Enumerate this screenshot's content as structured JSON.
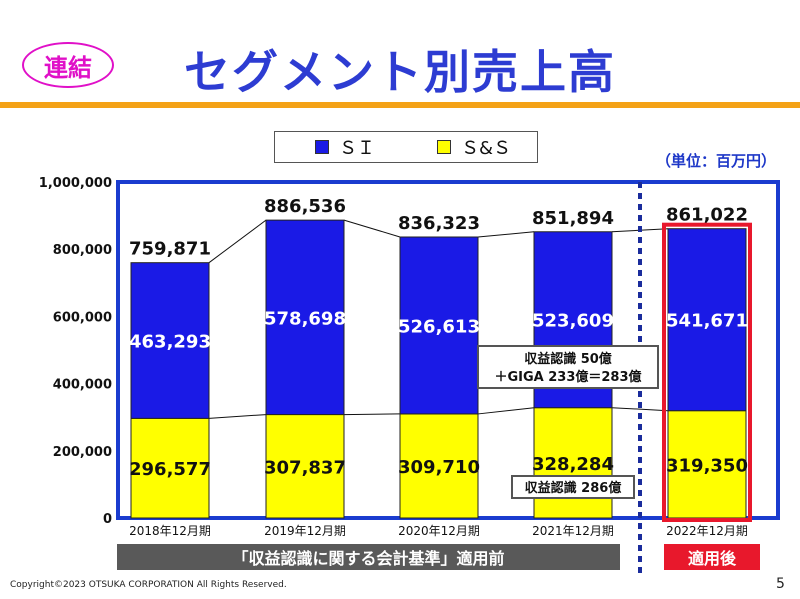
{
  "header": {
    "badge": "連結",
    "title": "セグメント別売上高"
  },
  "unit_label": "（単位：百万円）",
  "colors": {
    "si": "#1a1ae6",
    "ss": "#ffff00",
    "frame": "#1a3ccf",
    "highlight": "#e8182c",
    "text_blue": "#1e38c8"
  },
  "annotations": {
    "si_note_line1": "収益認識 50億",
    "si_note_line2": "＋GIGA 233億＝283億",
    "ss_note": "収益認識 286億"
  },
  "banners": {
    "before": "「収益認識に関する会計基準」適用前",
    "after": "適用後"
  },
  "footer": {
    "copyright": "Copyright©2023 OTSUKA CORPORATION All Rights Reserved.",
    "page": "5"
  },
  "chart_data": {
    "type": "bar",
    "stacked": true,
    "categories": [
      "2018年12月期",
      "2019年12月期",
      "2020年12月期",
      "2021年12月期",
      "2022年12月期"
    ],
    "series": [
      {
        "name": "ＳＩ",
        "values": [
          463293,
          578698,
          526613,
          523609,
          541671
        ]
      },
      {
        "name": "Ｓ&Ｓ",
        "values": [
          296577,
          307837,
          309710,
          328284,
          319350
        ]
      }
    ],
    "totals": [
      759871,
      886536,
      836323,
      851894,
      861022
    ],
    "value_labels": {
      "si": [
        "463,293",
        "578,698",
        "526,613",
        "523,609",
        "541,671"
      ],
      "ss": [
        "296,577",
        "307,837",
        "309,710",
        "328,284",
        "319,350"
      ],
      "totals": [
        "759,871",
        "886,536",
        "836,323",
        "851,894",
        "861,022"
      ]
    },
    "yticks": [
      0,
      200000,
      400000,
      600000,
      800000,
      1000000
    ],
    "ytick_labels": [
      "0",
      "200,000",
      "400,000",
      "600,000",
      "800,000",
      "1,000,000"
    ],
    "ylim": [
      0,
      1000000
    ],
    "legend_position": "top-center",
    "grid": false
  }
}
